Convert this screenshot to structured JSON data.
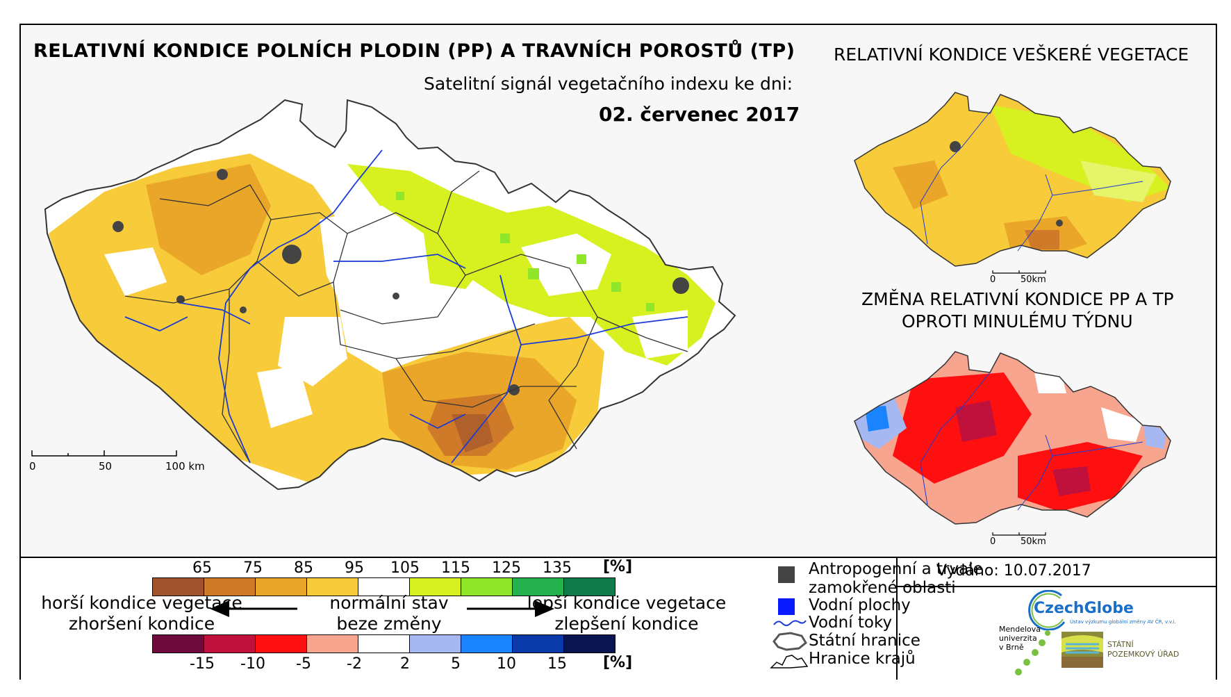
{
  "title": "RELATIVNÍ KONDICE POLNÍCH PLODIN (PP) A TRAVNÍCH POROSTŮ (TP)",
  "subtitle": "Satelitní signál vegetačního indexu ke dni:",
  "date": "02. červenec 2017",
  "inset_vegetation_title": "RELATIVNÍ KONDICE VEŠKERÉ VEGETACE",
  "inset_change_title_line1": "ZMĚNA RELATIVNÍ KONDICE PP A TP",
  "inset_change_title_line2": "OPROTI MINULÉMU TÝDNU",
  "main_scale": {
    "l0": "0",
    "l1": "50",
    "l2": "100 km"
  },
  "inset_scale": {
    "l0": "0",
    "l1": "50km"
  },
  "condition_legend": {
    "ticks": [
      "65",
      "75",
      "85",
      "95",
      "105",
      "115",
      "125",
      "135"
    ],
    "unit": "[%]",
    "colors": [
      "#a0522d",
      "#cf7a28",
      "#eaa628",
      "#f7cb3a",
      "#ffffff",
      "#d6f020",
      "#8fe62a",
      "#25b24e",
      "#0e7a4a"
    ]
  },
  "change_legend": {
    "ticks": [
      "-15",
      "-10",
      "-5",
      "-2",
      "2",
      "5",
      "10",
      "15"
    ],
    "unit": "[%]",
    "colors": [
      "#6e0a3c",
      "#c0103c",
      "#ff1010",
      "#f8a590",
      "#ffffff",
      "#a6b8f2",
      "#1a84ff",
      "#0a3aa8",
      "#0a1450"
    ]
  },
  "captions": {
    "worse_1": "horší kondice vegetace",
    "worse_2": "zhoršení kondice",
    "normal_1": "normální stav",
    "normal_2": "beze změny",
    "better_1": "lepší kondice vegetace",
    "better_2": "zlepšení kondice"
  },
  "map_legend": {
    "urban_1": "Antropogenní a trvale",
    "urban_2": "zamokřené oblasti",
    "water": "Vodní plochy",
    "rivers": "Vodní toky",
    "border": "Státní hranice",
    "regions": "Hranice krajů"
  },
  "issued": "Vydáno: 10.07.2017",
  "logos": {
    "czechglobe": "CzechGlobe",
    "czechglobe_tagline": "Ústav výzkumu globální změny AV ČR, v.v.i.",
    "mendelu_1": "Mendelova",
    "mendelu_2": "univerzita",
    "mendelu_3": "v Brně",
    "spu_1": "STÁTNÍ",
    "spu_2": "POZEMKOVÝ ÚŘAD"
  }
}
